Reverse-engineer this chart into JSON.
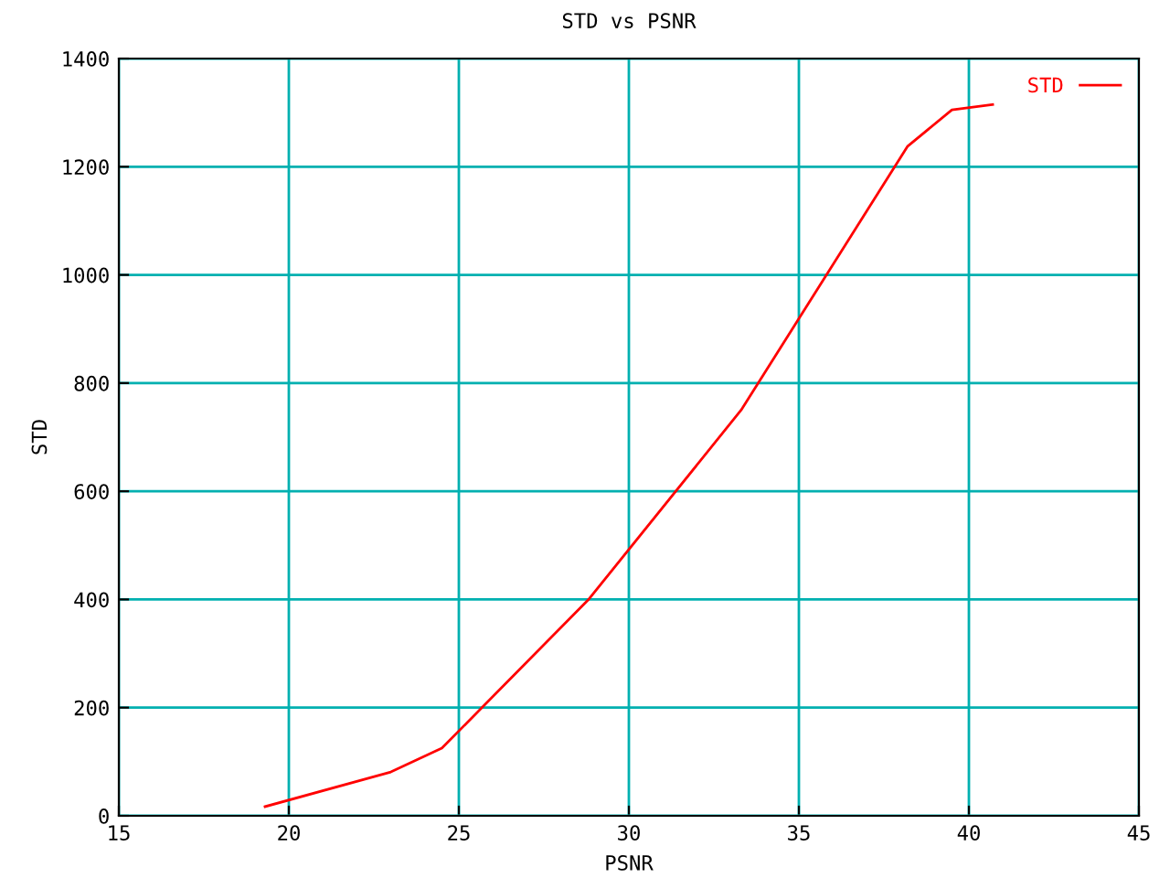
{
  "chart_data": {
    "type": "line",
    "title": "STD vs PSNR",
    "xlabel": "PSNR",
    "ylabel": "STD",
    "xlim": [
      15,
      45
    ],
    "xticks": [
      15,
      20,
      25,
      30,
      35,
      40,
      45
    ],
    "ylim": [
      0,
      1400
    ],
    "yticks": [
      0,
      200,
      400,
      600,
      800,
      1000,
      1200,
      1400
    ],
    "grid": true,
    "legend": "top right",
    "series": [
      {
        "name": "STD",
        "color": "#ff0000",
        "x": [
          19.3,
          23.0,
          24.5,
          28.8,
          33.3,
          38.2,
          39.5,
          40.7
        ],
        "values": [
          17,
          81,
          125,
          399,
          750,
          1238,
          1305,
          1315
        ]
      }
    ]
  }
}
